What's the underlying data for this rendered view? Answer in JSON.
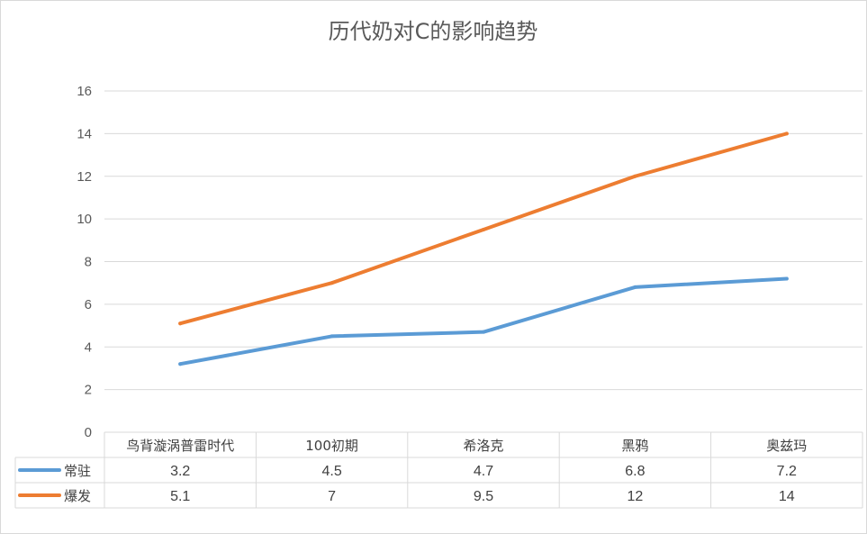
{
  "chart_data": {
    "type": "line",
    "title": "历代奶对C的影响趋势",
    "categories": [
      "鸟背漩涡普雷时代",
      "100初期",
      "希洛克",
      "黑鸦",
      "奥兹玛"
    ],
    "series": [
      {
        "name": "常驻",
        "values": [
          3.2,
          4.5,
          4.7,
          6.8,
          7.2
        ],
        "color": "#5b9bd5"
      },
      {
        "name": "爆发",
        "values": [
          5.1,
          7,
          9.5,
          12,
          14
        ],
        "color": "#ed7d31"
      }
    ],
    "value_labels": [
      [
        "3.2",
        "4.5",
        "4.7",
        "6.8",
        "7.2"
      ],
      [
        "5.1",
        "7",
        "9.5",
        "12",
        "14"
      ]
    ],
    "ylim": [
      0,
      16
    ],
    "yticks": [
      "0",
      "2",
      "4",
      "6",
      "8",
      "10",
      "12",
      "14",
      "16"
    ],
    "grid": true,
    "legend": "data-table-bottom",
    "xlabel": "",
    "ylabel": ""
  }
}
